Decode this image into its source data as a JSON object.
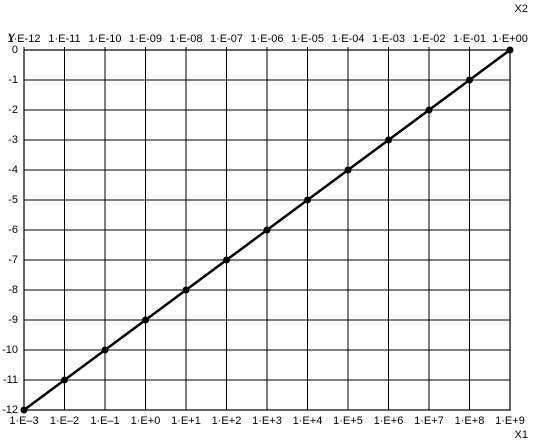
{
  "chart_data": {
    "type": "line",
    "x_label": "X1",
    "x2_label": "X2",
    "y_label": "Y",
    "x": [
      0.001,
      0.01,
      0.1,
      1,
      10,
      100,
      1000,
      10000,
      100000,
      1000000,
      10000000,
      100000000,
      1000000000
    ],
    "values": [
      -12,
      -11,
      -10,
      -9,
      -8,
      -7,
      -6,
      -5,
      -4,
      -3,
      -2,
      -1,
      0
    ],
    "color": "#000000",
    "xscale": "log",
    "x2scale": "log",
    "xlim": [
      0.001,
      1000000000
    ],
    "xticks": [
      {
        "value": 0.001,
        "label": "1·E–3"
      },
      {
        "value": 0.01,
        "label": "1·E–2"
      },
      {
        "value": 0.1,
        "label": "1·E–1"
      },
      {
        "value": 1,
        "label": "1·E+0"
      },
      {
        "value": 10,
        "label": "1·E+1"
      },
      {
        "value": 100,
        "label": "1·E+2"
      },
      {
        "value": 1000,
        "label": "1·E+3"
      },
      {
        "value": 10000,
        "label": "1·E+4"
      },
      {
        "value": 100000,
        "label": "1·E+5"
      },
      {
        "value": 1000000,
        "label": "1·E+6"
      },
      {
        "value": 10000000,
        "label": "1·E+7"
      },
      {
        "value": 100000000,
        "label": "1·E+8"
      },
      {
        "value": 1000000000,
        "label": "1·E+9"
      }
    ],
    "x2lim": [
      1e-12,
      1
    ],
    "x2ticks": [
      {
        "value": 1e-12,
        "label": "1·E-12"
      },
      {
        "value": 1e-11,
        "label": "1·E-11"
      },
      {
        "value": 1e-10,
        "label": "1·E-10"
      },
      {
        "value": 1e-09,
        "label": "1·E-09"
      },
      {
        "value": 1e-08,
        "label": "1·E-08"
      },
      {
        "value": 1e-07,
        "label": "1·E-07"
      },
      {
        "value": 1e-06,
        "label": "1·E-06"
      },
      {
        "value": 1e-05,
        "label": "1·E-05"
      },
      {
        "value": 0.0001,
        "label": "1·E-04"
      },
      {
        "value": 0.001,
        "label": "1·E-03"
      },
      {
        "value": 0.01,
        "label": "1·E-02"
      },
      {
        "value": 0.1,
        "label": "1·E-01"
      },
      {
        "value": 1,
        "label": "1·E+00"
      }
    ],
    "ylim": [
      -12,
      0
    ],
    "yticks": [
      0,
      -1,
      -2,
      -3,
      -4,
      -5,
      -6,
      -7,
      -8,
      -9,
      -10,
      -11,
      -12
    ],
    "grid": true
  }
}
